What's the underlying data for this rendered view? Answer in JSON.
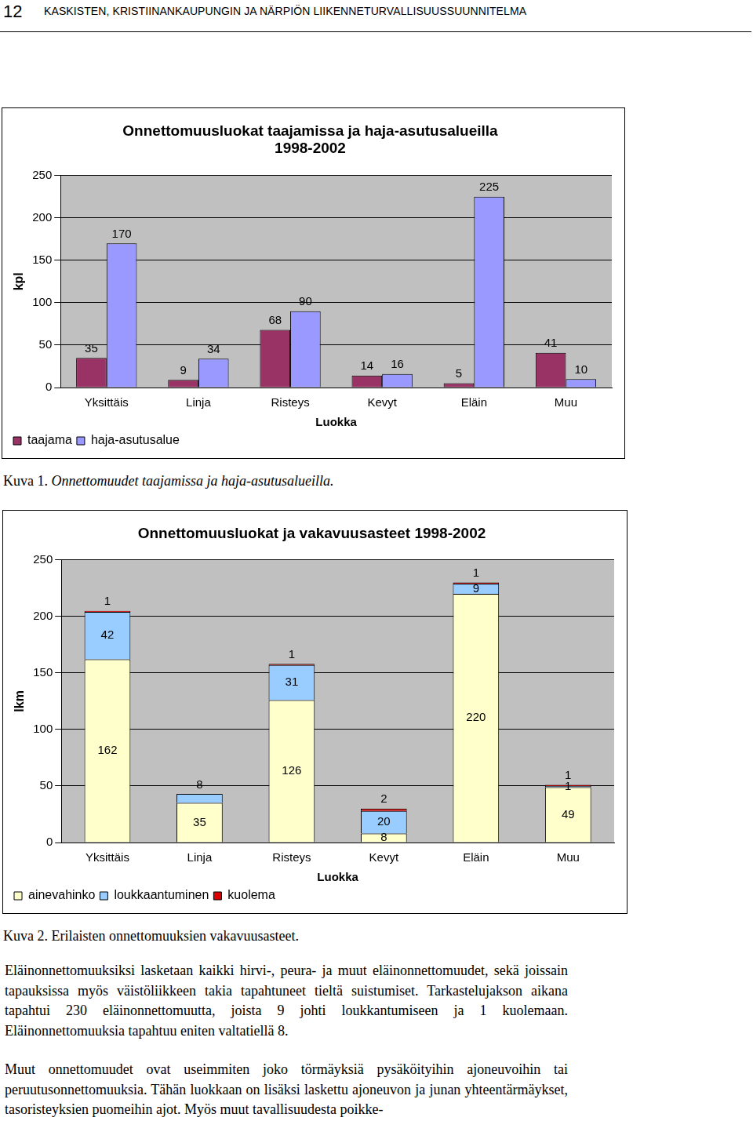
{
  "header": {
    "page_number": "12",
    "title": "KASKISTEN, KRISTIINANKAUPUNGIN JA NÄRPIÖN LIIKENNETURVALLISUUSSUUNNITELMA"
  },
  "chart_data": [
    {
      "type": "bar",
      "title": [
        "Onnettomuusluokat taajamissa ja haja-asutusalueilla",
        "1998-2002"
      ],
      "x_label": "Luokka",
      "y_label": "kpl",
      "categories": [
        "Yksittäis",
        "Linja",
        "Risteys",
        "Kevyt",
        "Eläin",
        "Muu"
      ],
      "series": [
        {
          "name": "taajama",
          "color": "#993366",
          "values": [
            35,
            9,
            68,
            14,
            5,
            41
          ]
        },
        {
          "name": "haja-asutusalue",
          "color": "#9999ff",
          "values": [
            170,
            34,
            90,
            16,
            225,
            10
          ]
        }
      ],
      "ylim": [
        0,
        250
      ],
      "yticks": [
        0,
        50,
        100,
        150,
        200,
        250
      ],
      "grid": true,
      "legend": "bottom-left",
      "data_labels": true
    },
    {
      "type": "bar",
      "title": "Onnettomuusluokat ja vakavuusasteet 1998-2002",
      "x_label": "Luokka",
      "y_label": "lkm",
      "categories": [
        "Yksittäis",
        "Linja",
        "Risteys",
        "Kevyt",
        "Eläin",
        "Muu"
      ],
      "series": [
        {
          "name": "ainevahinko",
          "color": "#ffffcc",
          "values": [
            162,
            35,
            126,
            8,
            220,
            49
          ]
        },
        {
          "name": "loukkaantuminen",
          "color": "#99ccff",
          "values": [
            42,
            8,
            31,
            20,
            9,
            1
          ]
        },
        {
          "name": "kuolema",
          "color": "#dd0000",
          "values": [
            1,
            null,
            1,
            2,
            1,
            1
          ]
        }
      ],
      "ylim": [
        0,
        250
      ],
      "yticks": [
        0,
        50,
        100,
        150,
        200,
        250
      ],
      "grid": true,
      "stacked": true,
      "legend": "bottom-left",
      "data_labels": true
    }
  ],
  "captions": [
    {
      "label": "Kuva 1.",
      "text": "Onnettomuudet taajamissa ja haja-asutusalueilla.",
      "style": "italic"
    },
    {
      "label": "Kuva 2.",
      "text": "Erilaisten onnettomuuksien vakavuusasteet.",
      "style": "normal"
    }
  ],
  "paragraphs": [
    "Eläinonnettomuuksiksi lasketaan kaikki hirvi-, peura- ja muut eläinonnettomuudet, sekä joissain tapauksissa myös väistöliikkeen takia tapahtuneet tieltä suistumiset. Tarkastelujakson aikana tapahtui 230 eläinonnettomuutta, joista 9 johti loukkantumiseen ja 1 kuolemaan. Eläinonnettomuuksia tapahtuu eniten valtatiellä 8.",
    "Muut onnettomuudet ovat useimmiten joko törmäyksiä pysäköityihin ajoneuvoihin tai peruutusonnettomuuksia. Tähän luokkaan on lisäksi laskettu ajoneuvon ja junan yhteentärmäykset, tasoristeyksien puomeihin ajot. Myös muut tavallisuudesta poikke-"
  ]
}
